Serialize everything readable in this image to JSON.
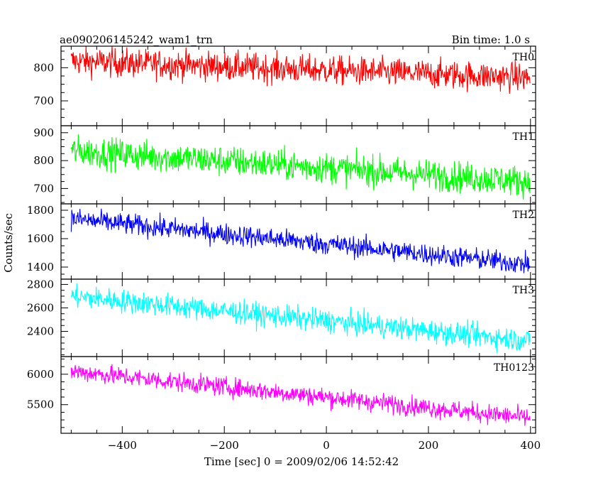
{
  "header": {
    "title": "ae090206145242_wam1_trn",
    "bin_time": "Bin time: 1.0 s"
  },
  "chart_data": {
    "type": "line",
    "xlabel": "Time [sec] 0 = 2009/02/06 14:52:42",
    "ylabel": "Counts/sec",
    "xlim": [
      -520,
      410
    ],
    "xticks_major": [
      -400,
      -200,
      0,
      200,
      400
    ],
    "xtick_labels": [
      "−400",
      "−200",
      "0",
      "200",
      "400"
    ],
    "x_start": -500,
    "x_end": 399,
    "x_step": 1,
    "panels": [
      {
        "name": "TH0",
        "color": "#ff0000",
        "ylim": [
          625,
          865
        ],
        "yticks": [
          700,
          800
        ],
        "ytick_labels": [
          "700",
          "800"
        ],
        "start_mean": 820,
        "end_mean": 770,
        "noise": 22
      },
      {
        "name": "TH1",
        "color": "#00ff00",
        "ylim": [
          645,
          925
        ],
        "yticks": [
          700,
          800,
          900
        ],
        "ytick_labels": [
          "700",
          "800",
          "900"
        ],
        "start_mean": 835,
        "end_mean": 725,
        "noise": 28
      },
      {
        "name": "TH2",
        "color": "#0000ff",
        "ylim": [
          1315,
          1845
        ],
        "yticks": [
          1400,
          1600,
          1800
        ],
        "ytick_labels": [
          "1400",
          "1600",
          "1800"
        ],
        "start_mean": 1740,
        "end_mean": 1420,
        "noise": 38
      },
      {
        "name": "TH3",
        "color": "#00ffff",
        "ylim": [
          2185,
          2845
        ],
        "yticks": [
          2400,
          2600,
          2800
        ],
        "ytick_labels": [
          "2400",
          "2600",
          "2800"
        ],
        "start_mean": 2700,
        "end_mean": 2320,
        "noise": 50
      },
      {
        "name": "TH0123",
        "color": "#ff00ff",
        "ylim": [
          5030,
          6290
        ],
        "yticks": [
          5500,
          6000
        ],
        "ytick_labels": [
          "5500",
          "6000"
        ],
        "start_mean": 6050,
        "end_mean": 5280,
        "noise": 80
      }
    ]
  }
}
